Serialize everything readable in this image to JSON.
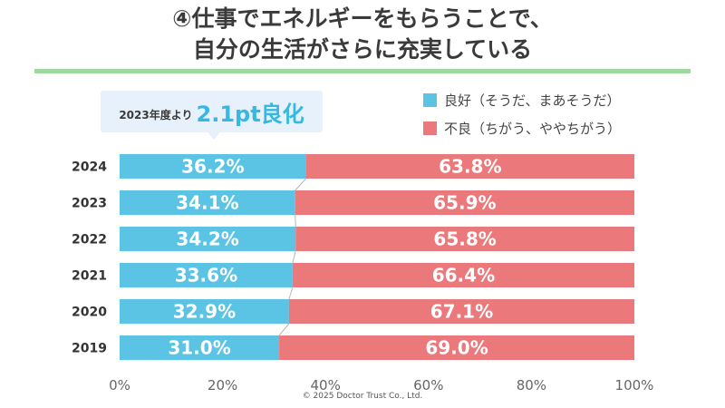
{
  "title": {
    "line1": "④仕事でエネルギーをもらうことで、",
    "line2": "自分の生活がさらに充実している"
  },
  "callout": {
    "prefix": "2023年度より",
    "value": "2.1pt良化"
  },
  "copyright": "©  2025 Doctor Trust Co., Ltd.",
  "colors": {
    "good": "#5bc3e4",
    "bad": "#eb787a",
    "rule": "#9ed99f",
    "callout_bg": "#e6f1fb"
  },
  "chart_data": {
    "type": "bar",
    "orientation": "horizontal",
    "stacked": true,
    "categories": [
      "2024",
      "2023",
      "2022",
      "2021",
      "2020",
      "2019"
    ],
    "series": [
      {
        "name": "良好（そうだ、まあそうだ）",
        "values": [
          36.2,
          34.1,
          34.2,
          33.6,
          32.9,
          31.0
        ],
        "labels": [
          "36.2%",
          "34.1%",
          "34.2%",
          "33.6%",
          "32.9%",
          "31.0%"
        ],
        "color": "#5bc3e4"
      },
      {
        "name": "不良（ちがう、ややちがう）",
        "values": [
          63.8,
          65.9,
          65.8,
          66.4,
          67.1,
          69.0
        ],
        "labels": [
          "63.8%",
          "65.9%",
          "65.8%",
          "66.4%",
          "67.1%",
          "69.0%"
        ],
        "color": "#eb787a"
      }
    ],
    "xlim": [
      0,
      100
    ],
    "xticks": [
      "0%",
      "20%",
      "40%",
      "60%",
      "80%",
      "100%"
    ],
    "grid": false,
    "connector_lines": true,
    "legend_position": "top-right"
  }
}
